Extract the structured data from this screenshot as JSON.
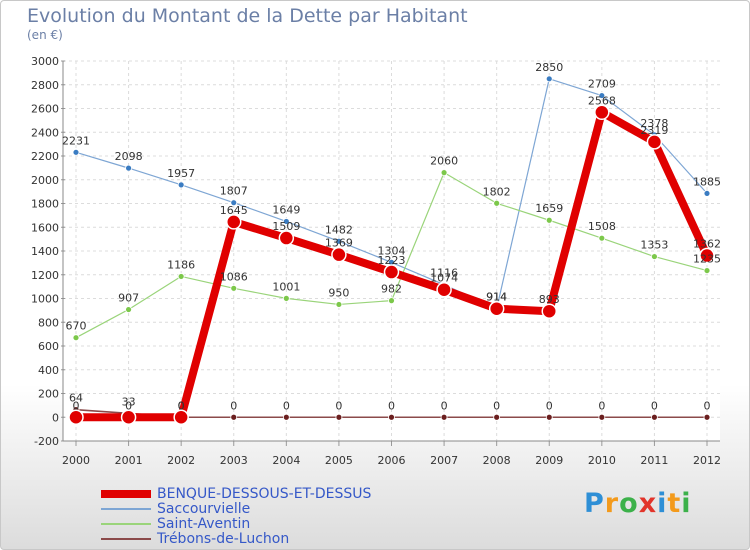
{
  "title": "Evolution du Montant de la Dette par Habitant",
  "subtitle": "(en €)",
  "brand": "Proxiti",
  "chart_data": {
    "type": "line",
    "title": "Evolution du Montant de la Dette par Habitant",
    "ylabel": "(en €)",
    "xlabel": "",
    "ylim": [
      -200,
      3000
    ],
    "yticks": [
      -200,
      0,
      200,
      400,
      600,
      800,
      1000,
      1200,
      1400,
      1600,
      1800,
      2000,
      2200,
      2400,
      2600,
      2800,
      3000
    ],
    "categories": [
      "2000",
      "2001",
      "2002",
      "2003",
      "2004",
      "2005",
      "2006",
      "2007",
      "2008",
      "2009",
      "2010",
      "2011",
      "2012"
    ],
    "grid": true,
    "series": [
      {
        "name": "BENQUE-DESSOUS-ET-DESSUS",
        "color": "#e00000",
        "values": [
          0,
          0,
          0,
          1645,
          1509,
          1369,
          1223,
          1074,
          914,
          893,
          2568,
          2319,
          1362
        ],
        "show_labels": true
      },
      {
        "name": "Saccourvielle",
        "color": "#7ea6d4",
        "values": [
          2231,
          2098,
          1957,
          1807,
          1649,
          1482,
          1304,
          1116,
          914,
          2850,
          2709,
          2378,
          1885
        ],
        "show_labels": true
      },
      {
        "name": "Saint-Aventin",
        "color": "#9ad47a",
        "values": [
          670,
          907,
          1186,
          1086,
          1001,
          950,
          982,
          2060,
          1802,
          1659,
          1508,
          1353,
          1235
        ],
        "show_labels": true
      },
      {
        "name": "Trébons-de-Luchon",
        "color": "#8b4a4a",
        "values": [
          64,
          33,
          0,
          0,
          0,
          0,
          0,
          0,
          0,
          0,
          0,
          0,
          0
        ],
        "show_labels": true
      }
    ],
    "legend_position": "bottom-left"
  }
}
